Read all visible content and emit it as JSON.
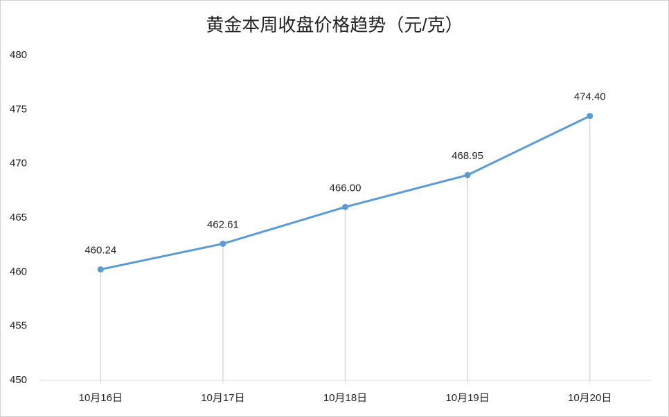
{
  "chart_data": {
    "type": "line",
    "title": "黄金本周收盘价格趋势（元/克）",
    "categories": [
      "10月16日",
      "10月17日",
      "10月18日",
      "10月19日",
      "10月20日"
    ],
    "values": [
      460.24,
      462.61,
      466.0,
      468.95,
      474.4
    ],
    "value_labels": [
      "460.24",
      "462.61",
      "466.00",
      "468.95",
      "474.40"
    ],
    "color": "#5b9bd5",
    "ylim": [
      450,
      480
    ],
    "yticks": [
      450,
      455,
      460,
      465,
      470,
      475,
      480
    ],
    "drop_lines": true
  }
}
